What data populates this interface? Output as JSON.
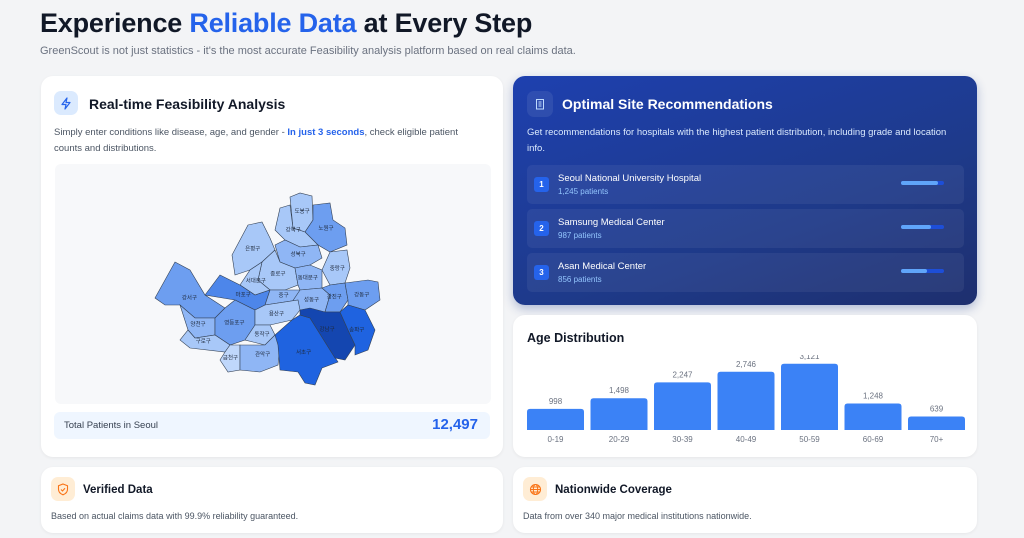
{
  "header": {
    "title_pre": "Experience ",
    "title_highlight": "Reliable Data",
    "title_post": " at Every Step",
    "subtitle": "GreenScout is not just statistics - it's the most accurate Feasibility analysis platform based on real claims data."
  },
  "feasibility": {
    "icon": "lightning-icon",
    "title": "Real-time Feasibility Analysis",
    "desc_pre": "Simply enter conditions like disease, age, and gender - ",
    "desc_highlight": "In just 3 seconds",
    "desc_post": ", check eligible patient counts and distributions.",
    "total_label": "Total Patients in Seoul",
    "total_value": "12,497",
    "districts": [
      {
        "name": "도봉구",
        "level": 1
      },
      {
        "name": "노원구",
        "level": 3
      },
      {
        "name": "강북구",
        "level": 1
      },
      {
        "name": "은평구",
        "level": 1
      },
      {
        "name": "성북구",
        "level": 2
      },
      {
        "name": "중랑구",
        "level": 1
      },
      {
        "name": "종로구",
        "level": 1
      },
      {
        "name": "서대문구",
        "level": 1
      },
      {
        "name": "동대문구",
        "level": 2
      },
      {
        "name": "마포구",
        "level": 4
      },
      {
        "name": "강서구",
        "level": 3
      },
      {
        "name": "중구",
        "level": 2
      },
      {
        "name": "성동구",
        "level": 2
      },
      {
        "name": "광진구",
        "level": 3
      },
      {
        "name": "강동구",
        "level": 3
      },
      {
        "name": "양천구",
        "level": 2
      },
      {
        "name": "영등포구",
        "level": 3
      },
      {
        "name": "용산구",
        "level": 1
      },
      {
        "name": "동작구",
        "level": 1
      },
      {
        "name": "구로구",
        "level": 1
      },
      {
        "name": "금천구",
        "level": 0
      },
      {
        "name": "관악구",
        "level": 2
      },
      {
        "name": "서초구",
        "level": 5
      },
      {
        "name": "강남구",
        "level": 6
      },
      {
        "name": "송파구",
        "level": 5
      }
    ]
  },
  "recommendations": {
    "icon": "building-icon",
    "title": "Optimal Site Recommendations",
    "desc": "Get recommendations for hospitals with the highest patient distribution, including grade and location info.",
    "hospitals": [
      {
        "rank": "1",
        "name": "Seoul National University Hospital",
        "patients": "1,245 patients",
        "share": 0.85
      },
      {
        "rank": "2",
        "name": "Samsung Medical Center",
        "patients": "987 patients",
        "share": 0.7
      },
      {
        "rank": "3",
        "name": "Asan Medical Center",
        "patients": "856 patients",
        "share": 0.6
      }
    ]
  },
  "age": {
    "title": "Age Distribution"
  },
  "chart_data": {
    "type": "bar",
    "title": "Age Distribution",
    "categories": [
      "0-19",
      "20-29",
      "30-39",
      "40-49",
      "50-59",
      "60-69",
      "70+"
    ],
    "values": [
      998,
      1498,
      2247,
      2746,
      3121,
      1248,
      639
    ],
    "labels": [
      "998",
      "1,498",
      "2,247",
      "2,746",
      "3,121",
      "1,248",
      "639"
    ],
    "color": "#3b82f6"
  },
  "verified": {
    "icon": "shield-check-icon",
    "title": "Verified Data",
    "desc": "Based on actual claims data with 99.9% reliability guaranteed."
  },
  "coverage": {
    "icon": "globe-icon",
    "title": "Nationwide Coverage",
    "desc": "Data from over 340 major medical institutions nationwide."
  }
}
